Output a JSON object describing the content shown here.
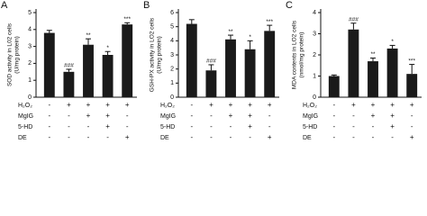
{
  "chart_data": [
    {
      "type": "bar",
      "label": "A",
      "ylabel": [
        "SOD activity in L02 cells",
        "(U/mg protein)"
      ],
      "values": [
        3.8,
        1.5,
        3.1,
        2.5,
        4.3
      ],
      "errors": [
        0.15,
        0.15,
        0.35,
        0.2,
        0.1
      ],
      "annotations": [
        null,
        "###",
        "**",
        "*",
        "***"
      ],
      "color": "#1a1a1a",
      "ylim": [
        0,
        5
      ],
      "yticks": [
        0,
        1,
        2,
        3,
        4,
        5
      ],
      "conditions": [
        {
          "name": "H₂O₂",
          "signs": [
            "-",
            "+",
            "+",
            "+",
            "+"
          ]
        },
        {
          "name": "MgIG",
          "signs": [
            "-",
            "-",
            "+",
            "+",
            "-"
          ]
        },
        {
          "name": "5-HD",
          "signs": [
            "-",
            "-",
            "-",
            "+",
            "-"
          ]
        },
        {
          "name": "DE",
          "signs": [
            "-",
            "-",
            "-",
            "-",
            "+"
          ]
        }
      ]
    },
    {
      "type": "bar",
      "label": "B",
      "ylabel": [
        "GSH-PX activity in LO2 cells",
        "(U/mg protein)"
      ],
      "values": [
        5.2,
        1.9,
        4.1,
        3.4,
        4.7
      ],
      "errors": [
        0.3,
        0.4,
        0.3,
        0.6,
        0.4
      ],
      "annotations": [
        null,
        "###",
        "**",
        "*",
        "***"
      ],
      "color": "#1a1a1a",
      "ylim": [
        0,
        6
      ],
      "yticks": [
        0,
        1,
        2,
        3,
        4,
        5,
        6
      ],
      "conditions": [
        {
          "name": "H₂O₂",
          "signs": [
            "-",
            "+",
            "+",
            "+",
            "+"
          ]
        },
        {
          "name": "MgIG",
          "signs": [
            "-",
            "-",
            "+",
            "+",
            "-"
          ]
        },
        {
          "name": "5-HD",
          "signs": [
            "-",
            "-",
            "-",
            "+",
            "-"
          ]
        },
        {
          "name": "DE",
          "signs": [
            "-",
            "-",
            "-",
            "-",
            "+"
          ]
        }
      ]
    },
    {
      "type": "bar",
      "label": "C",
      "ylabel": [
        "MDA contents in LO2 cells",
        "(nmol/mg protein)"
      ],
      "values": [
        1.0,
        3.2,
        1.7,
        2.3,
        1.1
      ],
      "errors": [
        0.05,
        0.3,
        0.15,
        0.15,
        0.45
      ],
      "annotations": [
        null,
        "###",
        "**",
        "*",
        "***"
      ],
      "color": "#1a1a1a",
      "ylim": [
        0,
        4
      ],
      "yticks": [
        0,
        1,
        2,
        3,
        4
      ],
      "conditions": [
        {
          "name": "H₂O₂",
          "signs": [
            "-",
            "+",
            "+",
            "+",
            "+"
          ]
        },
        {
          "name": "MgIG",
          "signs": [
            "-",
            "-",
            "+",
            "+",
            "-"
          ]
        },
        {
          "name": "5-HD",
          "signs": [
            "-",
            "-",
            "-",
            "+",
            "-"
          ]
        },
        {
          "name": "DE",
          "signs": [
            "-",
            "-",
            "-",
            "-",
            "+"
          ]
        }
      ]
    }
  ]
}
